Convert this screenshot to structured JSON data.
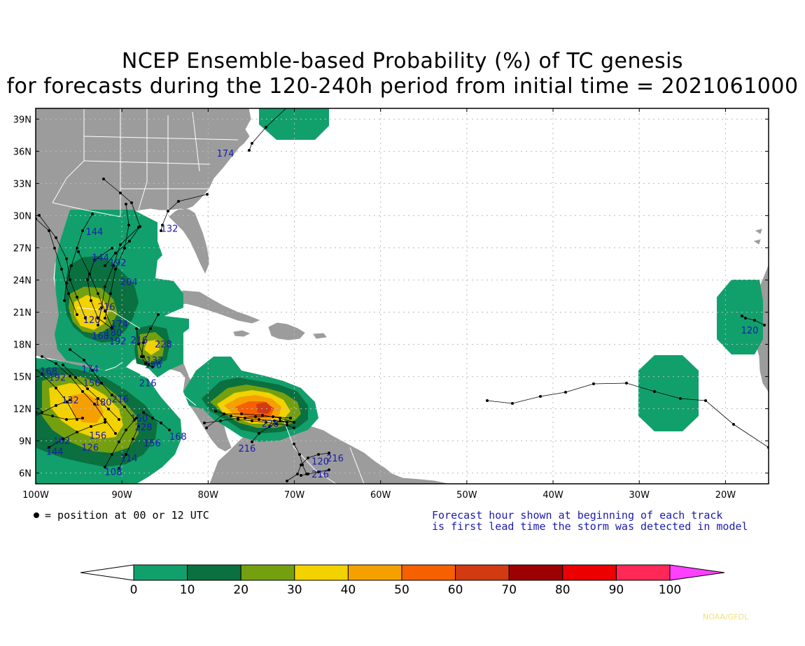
{
  "title": {
    "line1": "NCEP Ensemble-based Probability (%) of TC genesis",
    "line2": "for forecasts during the 120-240h period from initial time = 2021061000"
  },
  "map": {
    "lat_labels": [
      "39N",
      "36N",
      "33N",
      "30N",
      "27N",
      "24N",
      "21N",
      "18N",
      "15N",
      "12N",
      "9N",
      "6N"
    ],
    "lat_values": [
      39,
      36,
      33,
      30,
      27,
      24,
      21,
      18,
      15,
      12,
      9,
      6
    ],
    "lon_labels": [
      "100W",
      "90W",
      "80W",
      "70W",
      "60W",
      "50W",
      "40W",
      "30W",
      "20W"
    ],
    "lon_values": [
      -100,
      -90,
      -80,
      -70,
      -60,
      -50,
      -40,
      -30,
      -20
    ],
    "extent": {
      "lon_min": -100,
      "lon_max": -15,
      "lat_min": 5,
      "lat_max": 40
    },
    "colors": {
      "land": "#9c9c9c",
      "ocean": "#ffffff",
      "border": "#ffffff",
      "track": "#000000",
      "label": "#1a1ab0"
    }
  },
  "genesis_regions": [
    {
      "name": "gulf-of-mexico",
      "max_prob": 40
    },
    {
      "name": "bay-of-campeche",
      "max_prob": 40
    },
    {
      "name": "eastern-pacific-mexico",
      "max_prob": 40
    },
    {
      "name": "caribbean-colombia",
      "max_prob": 70
    },
    {
      "name": "mid-atlantic-coast",
      "max_prob": 10
    },
    {
      "name": "cape-verde",
      "max_prob": 10
    },
    {
      "name": "west-africa-coast",
      "max_prob": 10
    }
  ],
  "track_labels": [
    {
      "text": "174",
      "lon": -79.0,
      "lat": 35.5
    },
    {
      "text": "132",
      "lon": -85.5,
      "lat": 28.5
    },
    {
      "text": "144",
      "lon": -94.2,
      "lat": 28.2
    },
    {
      "text": "144",
      "lon": -93.5,
      "lat": 25.8
    },
    {
      "text": "192",
      "lon": -91.5,
      "lat": 25.3
    },
    {
      "text": "204",
      "lon": -90.2,
      "lat": 23.5
    },
    {
      "text": "216",
      "lon": -92.8,
      "lat": 21.2
    },
    {
      "text": "120",
      "lon": -94.5,
      "lat": 20.0
    },
    {
      "text": "174",
      "lon": -91.3,
      "lat": 19.6
    },
    {
      "text": "168",
      "lon": -93.5,
      "lat": 18.5
    },
    {
      "text": "180",
      "lon": -92.0,
      "lat": 18.8
    },
    {
      "text": "192",
      "lon": -91.5,
      "lat": 18.0
    },
    {
      "text": "216",
      "lon": -89.0,
      "lat": 18.1
    },
    {
      "text": "228",
      "lon": -86.2,
      "lat": 17.7
    },
    {
      "text": "132",
      "lon": -87.2,
      "lat": 16.2
    },
    {
      "text": "156",
      "lon": -87.4,
      "lat": 15.8
    },
    {
      "text": "216",
      "lon": -88.0,
      "lat": 14.1
    },
    {
      "text": "168",
      "lon": -99.5,
      "lat": 15.2
    },
    {
      "text": "192",
      "lon": -98.5,
      "lat": 14.6
    },
    {
      "text": "132",
      "lon": -97.0,
      "lat": 12.5
    },
    {
      "text": "174",
      "lon": -94.7,
      "lat": 15.4
    },
    {
      "text": "156",
      "lon": -94.5,
      "lat": 14.1
    },
    {
      "text": "180",
      "lon": -93.2,
      "lat": 12.3
    },
    {
      "text": "216",
      "lon": -91.2,
      "lat": 12.6
    },
    {
      "text": "150",
      "lon": -89.0,
      "lat": 10.8
    },
    {
      "text": "228",
      "lon": -88.5,
      "lat": 10.0
    },
    {
      "text": "162",
      "lon": -98.0,
      "lat": 8.7
    },
    {
      "text": "144",
      "lon": -98.8,
      "lat": 7.7
    },
    {
      "text": "126",
      "lon": -94.7,
      "lat": 8.1
    },
    {
      "text": "156",
      "lon": -93.8,
      "lat": 9.2
    },
    {
      "text": "156",
      "lon": -87.5,
      "lat": 8.5
    },
    {
      "text": "168",
      "lon": -84.5,
      "lat": 9.1
    },
    {
      "text": "114",
      "lon": -90.2,
      "lat": 7.1
    },
    {
      "text": "108",
      "lon": -92.0,
      "lat": 5.8
    },
    {
      "text": "216",
      "lon": -76.5,
      "lat": 8.0
    },
    {
      "text": "216",
      "lon": -66.3,
      "lat": 7.1
    },
    {
      "text": "120",
      "lon": -68.0,
      "lat": 6.8
    },
    {
      "text": "216",
      "lon": -68.0,
      "lat": 5.6
    },
    {
      "text": "228",
      "lon": -73.8,
      "lat": 10.3
    },
    {
      "text": "120",
      "lon": -18.2,
      "lat": 19.0
    }
  ],
  "figure_notes": {
    "position_legend": "= position at 00 or 12 UTC",
    "forecast_note_line1": "Forecast hour shown at beginning of each track",
    "forecast_note_line2": "is first lead time the storm was detected in model"
  },
  "colorbar": {
    "labels": [
      "0",
      "10",
      "20",
      "30",
      "40",
      "50",
      "60",
      "70",
      "80",
      "90",
      "100"
    ],
    "colors": [
      "#11a06c",
      "#0a7040",
      "#74a010",
      "#f2d200",
      "#f6a000",
      "#f66000",
      "#d23a12",
      "#9c0000",
      "#ec0000",
      "#ff2856",
      "#ff40ff"
    ]
  },
  "credit": "NOAA/GFDL"
}
